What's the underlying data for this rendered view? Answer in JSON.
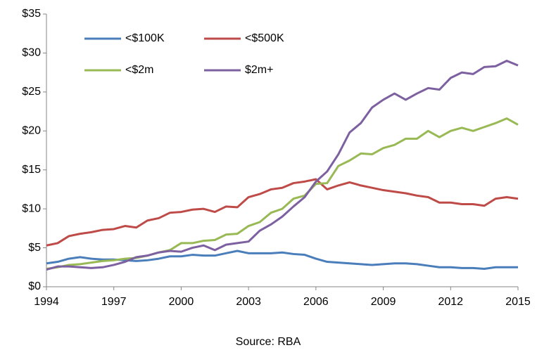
{
  "chart_data": {
    "type": "line",
    "source": "Source: RBA",
    "x": [
      1994,
      1994.5,
      1995,
      1995.5,
      1996,
      1996.5,
      1997,
      1997.5,
      1998,
      1998.5,
      1999,
      1999.5,
      2000,
      2000.5,
      2001,
      2001.5,
      2002,
      2002.5,
      2003,
      2003.5,
      2004,
      2004.5,
      2005,
      2005.5,
      2006,
      2006.5,
      2007,
      2007.5,
      2008,
      2008.5,
      2009,
      2009.5,
      2010,
      2010.5,
      2011,
      2011.5,
      2012,
      2012.5,
      2013,
      2013.5,
      2014,
      2014.5,
      2015
    ],
    "series": [
      {
        "name": "<$100K",
        "color": "#4a7ebb",
        "values": [
          3.0,
          3.2,
          3.6,
          3.8,
          3.6,
          3.5,
          3.5,
          3.4,
          3.3,
          3.4,
          3.6,
          3.9,
          3.9,
          4.1,
          4.0,
          4.0,
          4.3,
          4.6,
          4.3,
          4.3,
          4.3,
          4.4,
          4.2,
          4.1,
          3.6,
          3.2,
          3.1,
          3.0,
          2.9,
          2.8,
          2.9,
          3.0,
          3.0,
          2.9,
          2.7,
          2.5,
          2.5,
          2.4,
          2.4,
          2.3,
          2.5,
          2.5,
          2.5
        ]
      },
      {
        "name": "<$500K",
        "color": "#be4b48",
        "values": [
          5.3,
          5.6,
          6.5,
          6.8,
          7.0,
          7.3,
          7.4,
          7.8,
          7.6,
          8.5,
          8.8,
          9.5,
          9.6,
          9.9,
          10.0,
          9.6,
          10.3,
          10.2,
          11.5,
          11.9,
          12.5,
          12.7,
          13.3,
          13.5,
          13.8,
          12.5,
          13.0,
          13.4,
          13.0,
          12.7,
          12.4,
          12.2,
          12.0,
          11.7,
          11.5,
          10.8,
          10.8,
          10.6,
          10.6,
          10.4,
          11.3,
          11.5,
          11.3
        ]
      },
      {
        "name": "<$2m",
        "color": "#98b954",
        "values": [
          2.3,
          2.5,
          2.8,
          2.9,
          3.1,
          3.3,
          3.4,
          3.6,
          3.7,
          4.0,
          4.4,
          4.7,
          5.6,
          5.6,
          5.9,
          6.0,
          6.7,
          6.8,
          7.8,
          8.3,
          9.5,
          10.0,
          11.3,
          11.7,
          13.2,
          13.3,
          15.5,
          16.2,
          17.1,
          17.0,
          17.8,
          18.2,
          19.0,
          19.0,
          20.0,
          19.2,
          20.0,
          20.4,
          20.0,
          20.5,
          21.0,
          21.6,
          20.8
        ]
      },
      {
        "name": "$2m+",
        "color": "#7d60a0",
        "values": [
          2.2,
          2.6,
          2.6,
          2.5,
          2.4,
          2.5,
          2.8,
          3.2,
          3.8,
          4.0,
          4.4,
          4.6,
          4.5,
          5.0,
          5.3,
          4.7,
          5.4,
          5.6,
          5.8,
          7.2,
          8.0,
          9.0,
          10.3,
          11.5,
          13.5,
          14.8,
          17.0,
          19.8,
          21.0,
          23.0,
          24.0,
          24.8,
          24.0,
          24.8,
          25.5,
          25.3,
          26.8,
          27.5,
          27.3,
          28.2,
          28.3,
          29.0,
          28.4
        ]
      }
    ],
    "xlim": [
      1994,
      2015
    ],
    "xticks": [
      1994,
      1997,
      2000,
      2003,
      2006,
      2009,
      2012,
      2015
    ],
    "ylim": [
      0,
      35
    ],
    "yticks": [
      {
        "value": 0,
        "label": "$0"
      },
      {
        "value": 5,
        "label": "$5"
      },
      {
        "value": 10,
        "label": "$10"
      },
      {
        "value": 15,
        "label": "$15"
      },
      {
        "value": 20,
        "label": "$20"
      },
      {
        "value": 25,
        "label": "$25"
      },
      {
        "value": 30,
        "label": "$30"
      },
      {
        "value": 35,
        "label": "$35"
      }
    ],
    "grid": false,
    "legend": "upper left"
  }
}
